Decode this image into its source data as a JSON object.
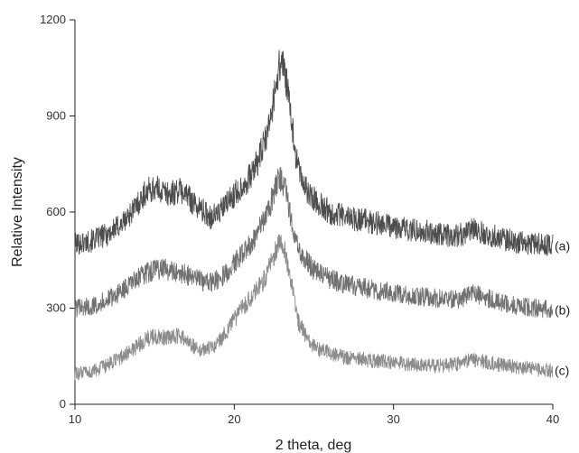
{
  "chart_data": {
    "type": "line",
    "xlabel": "2 theta, deg",
    "ylabel": "Relative Intensity",
    "xlim": [
      10,
      40
    ],
    "ylim": [
      0,
      1200
    ],
    "xticks": [
      10,
      20,
      30,
      40
    ],
    "yticks": [
      0,
      300,
      600,
      900,
      1200
    ],
    "grid": false,
    "series": [
      {
        "name": "(a)",
        "color": "#4d4d4d",
        "x": [
          10,
          11,
          12,
          13,
          14,
          14.5,
          15,
          15.5,
          16,
          16.5,
          17,
          17.5,
          18,
          18.5,
          19,
          19.5,
          20,
          20.5,
          21,
          21.5,
          22,
          22.3,
          22.6,
          22.8,
          23,
          23.2,
          23.5,
          23.8,
          24,
          24.5,
          25,
          26,
          27,
          28,
          29,
          30,
          31,
          32,
          33,
          34,
          35,
          36,
          37,
          38,
          39,
          40
        ],
        "values": [
          500,
          510,
          530,
          565,
          630,
          665,
          675,
          665,
          655,
          670,
          655,
          625,
          605,
          585,
          595,
          625,
          655,
          680,
          710,
          760,
          830,
          900,
          990,
          1050,
          1075,
          1030,
          920,
          800,
          740,
          670,
          640,
          600,
          585,
          575,
          565,
          555,
          545,
          540,
          530,
          525,
          545,
          530,
          515,
          505,
          500,
          495
        ]
      },
      {
        "name": "(b)",
        "color": "#707070",
        "x": [
          10,
          11,
          12,
          13,
          14,
          14.5,
          15,
          15.5,
          16,
          16.5,
          17,
          17.5,
          18,
          18.5,
          19,
          19.5,
          20,
          20.5,
          21,
          21.5,
          22,
          22.3,
          22.6,
          22.8,
          23,
          23.2,
          23.5,
          23.8,
          24,
          24.5,
          25,
          26,
          27,
          28,
          29,
          30,
          31,
          32,
          33,
          34,
          35,
          36,
          37,
          38,
          39,
          40
        ],
        "values": [
          300,
          305,
          325,
          355,
          395,
          410,
          420,
          425,
          415,
          410,
          405,
          395,
          385,
          380,
          390,
          410,
          440,
          470,
          500,
          540,
          590,
          630,
          680,
          700,
          705,
          670,
          600,
          530,
          490,
          450,
          420,
          390,
          375,
          365,
          355,
          350,
          340,
          335,
          330,
          325,
          345,
          330,
          315,
          305,
          300,
          295
        ]
      },
      {
        "name": "(c)",
        "color": "#8c8c8c",
        "x": [
          10,
          11,
          12,
          13,
          14,
          14.5,
          15,
          15.5,
          16,
          16.5,
          17,
          17.5,
          18,
          18.5,
          19,
          19.5,
          20,
          20.5,
          21,
          21.5,
          22,
          22.3,
          22.6,
          22.8,
          23,
          23.2,
          23.5,
          23.8,
          24,
          24.5,
          25,
          26,
          27,
          28,
          29,
          30,
          31,
          32,
          33,
          34,
          35,
          36,
          37,
          38,
          39,
          40
        ],
        "values": [
          95,
          100,
          120,
          150,
          185,
          205,
          210,
          210,
          205,
          215,
          200,
          180,
          170,
          175,
          195,
          225,
          265,
          300,
          330,
          360,
          400,
          440,
          480,
          500,
          505,
          470,
          400,
          320,
          260,
          210,
          180,
          160,
          145,
          140,
          135,
          130,
          125,
          120,
          120,
          125,
          140,
          130,
          120,
          115,
          110,
          105
        ]
      }
    ]
  }
}
